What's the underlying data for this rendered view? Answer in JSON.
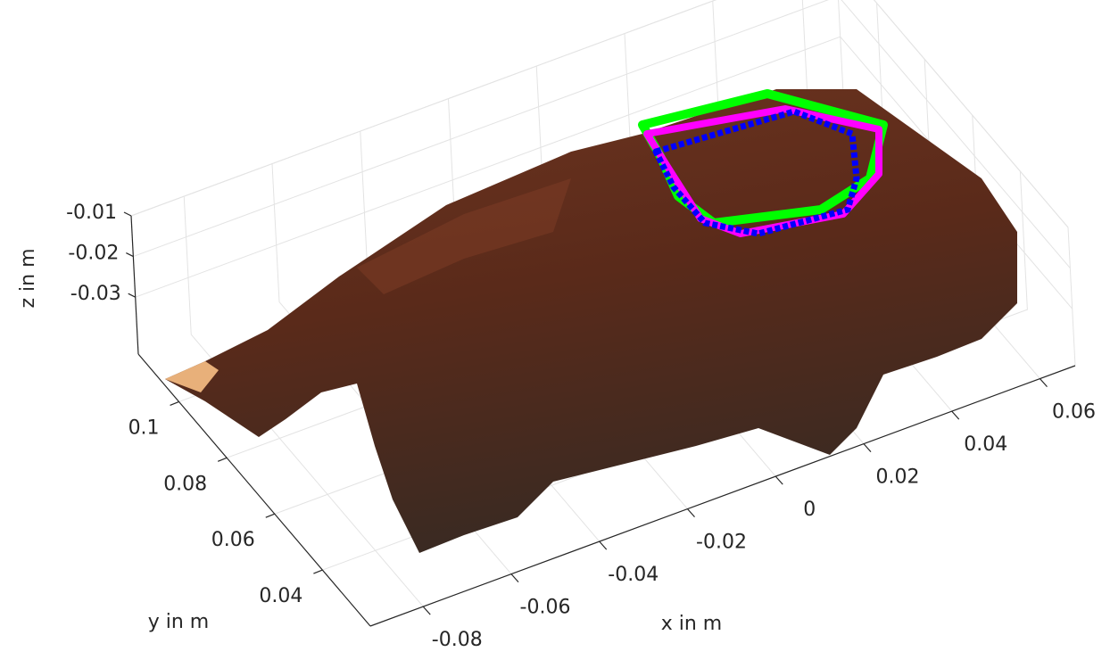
{
  "chart_data": {
    "type": "scatter3d",
    "xlabel": "x in m",
    "ylabel": "y in m",
    "zlabel": "z in m",
    "xlim": [
      -0.092,
      0.068
    ],
    "ylim": [
      0.02,
      0.117
    ],
    "zlim": [
      -0.044,
      -0.01
    ],
    "xticks": [
      -0.08,
      -0.06,
      -0.04,
      -0.02,
      0,
      0.02,
      0.04,
      0.06
    ],
    "yticks": [
      0.04,
      0.06,
      0.08,
      0.1
    ],
    "zticks": [
      -0.03,
      -0.02,
      -0.01
    ],
    "grid": true
  }
}
